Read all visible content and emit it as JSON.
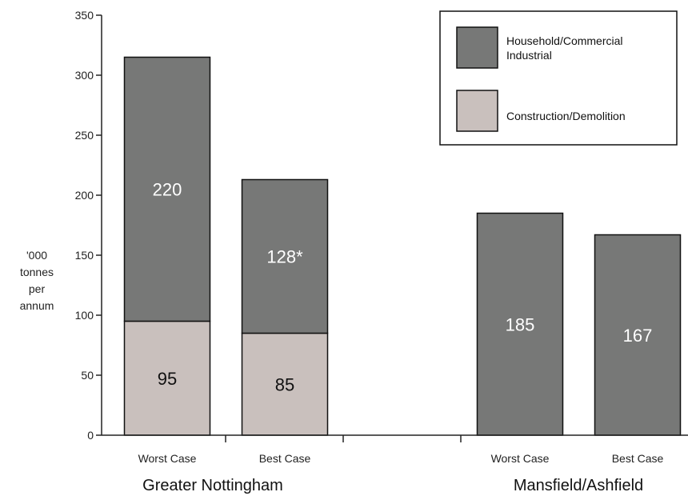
{
  "chart_data": {
    "type": "bar",
    "stacked": true,
    "ylabel_lines": [
      "'000",
      "tonnes",
      "per",
      "annum"
    ],
    "ylim": [
      0,
      350
    ],
    "yticks": [
      0,
      50,
      100,
      150,
      200,
      250,
      300,
      350
    ],
    "grid": false,
    "legend_position": "top-right",
    "groups": [
      {
        "name": "Greater Nottingham",
        "categories": [
          "Worst Case",
          "Best Case"
        ]
      },
      {
        "name": "Mansfield/Ashfield",
        "categories": [
          "Worst Case",
          "Best Case"
        ]
      }
    ],
    "series": [
      {
        "name": "Construction/Demolition",
        "color": "#c9c0bd",
        "label_color": "#111111",
        "values": [
          95,
          85,
          0,
          0
        ],
        "labels": [
          "95",
          "85",
          "",
          ""
        ]
      },
      {
        "name": "Household/Commercial Industrial",
        "legend_lines": [
          "Household/Commercial",
          "Industrial"
        ],
        "color": "#777877",
        "label_color": "#ffffff",
        "values": [
          220,
          128,
          185,
          167
        ],
        "labels": [
          "220",
          "128*",
          "185",
          "167"
        ]
      }
    ]
  }
}
